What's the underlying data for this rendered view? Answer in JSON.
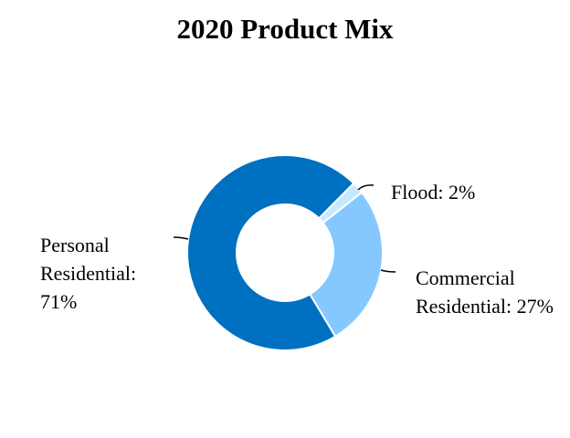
{
  "chart_data": {
    "type": "donut",
    "title": "2020 Product Mix",
    "categories": [
      "Personal Residential:",
      "Commercial Residential:",
      "Flood:"
    ],
    "values": [
      71,
      27,
      2
    ],
    "value_labels": [
      "71%",
      "27%",
      "2%"
    ],
    "colors": [
      "#0070c0",
      "#85c8ff",
      "#c5e9ff"
    ]
  }
}
